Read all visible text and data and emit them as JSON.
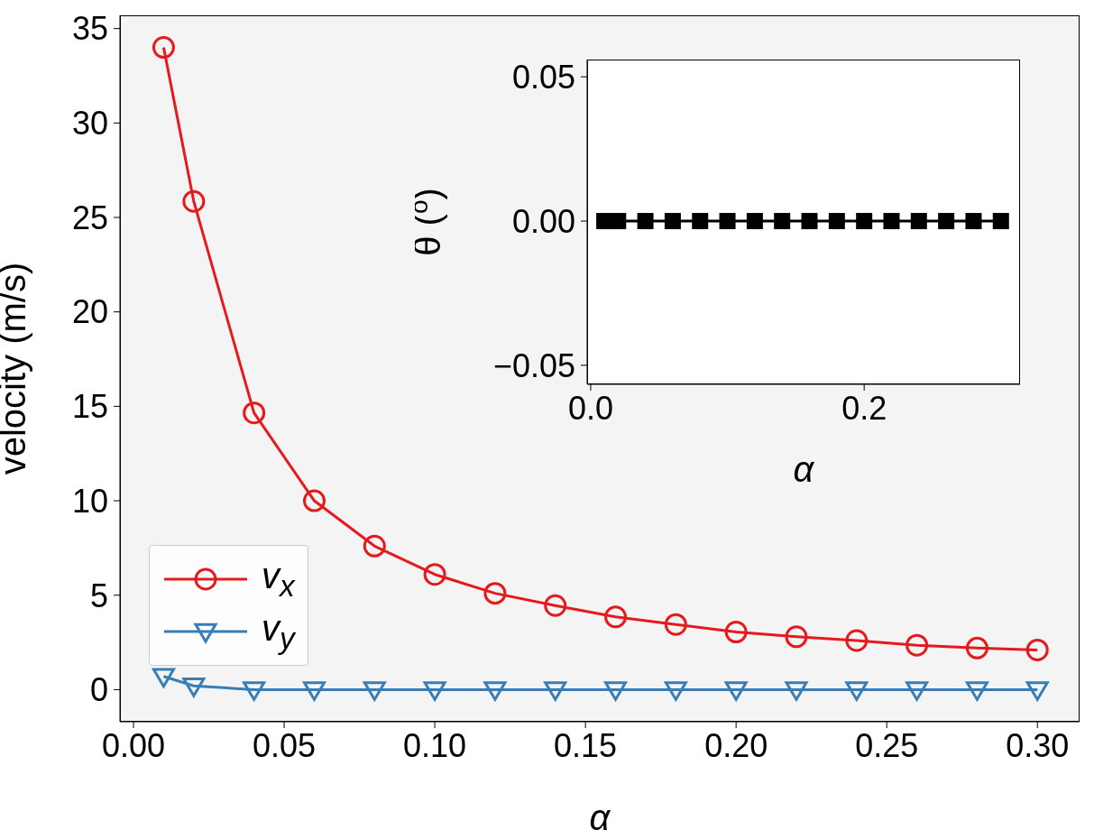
{
  "chart_data": [
    {
      "type": "line",
      "xlabel": "α",
      "ylabel": "velocity (m/s)",
      "x": [
        0.01,
        0.02,
        0.04,
        0.06,
        0.08,
        0.1,
        0.12,
        0.14,
        0.16,
        0.18,
        0.2,
        0.22,
        0.24,
        0.26,
        0.28,
        0.3
      ],
      "series": [
        {
          "name": "v$_{x}$",
          "color": "#e41a1c",
          "marker": "circle",
          "values": [
            34.0,
            25.85,
            14.65,
            10.0,
            7.6,
            6.1,
            5.1,
            4.45,
            3.85,
            3.45,
            3.05,
            2.8,
            2.6,
            2.35,
            2.2,
            2.1
          ]
        },
        {
          "name": "v$_{y}$",
          "color": "#377eb8",
          "marker": "triangle",
          "values": [
            0.7,
            0.2,
            0,
            0,
            0,
            0,
            0,
            0,
            0,
            0,
            0,
            0,
            0,
            0,
            0,
            0
          ]
        }
      ],
      "xlim": [
        -0.0045,
        0.314
      ],
      "xticks": [
        {
          "value": 0,
          "label": "0.00"
        },
        0.05,
        {
          "value": 0.1,
          "label": "0.10"
        },
        0.15,
        {
          "value": 0.2,
          "label": "0.20"
        },
        0.25,
        {
          "value": 0.3,
          "label": "0.30"
        }
      ],
      "ylim": [
        -1.7,
        35.7
      ],
      "yticks": [
        0,
        5,
        10,
        15,
        20,
        25,
        30,
        35
      ],
      "legend": "bottom left",
      "grid": false
    },
    {
      "type": "line",
      "xlabel": "α",
      "ylabel": "θ ($^{o}$)",
      "x": [
        0.01,
        0.02,
        0.04,
        0.06,
        0.08,
        0.1,
        0.12,
        0.14,
        0.16,
        0.18,
        0.2,
        0.22,
        0.24,
        0.26,
        0.28,
        0.3
      ],
      "series": [
        {
          "color": "#000000",
          "marker": "square",
          "values": [
            0,
            0,
            0,
            0,
            0,
            0,
            0,
            0,
            0,
            0,
            0,
            0,
            0,
            0,
            0,
            0
          ]
        }
      ],
      "xlim": [
        -0.0026,
        0.314
      ],
      "xticks": [
        {
          "value": 0,
          "label": "0.0"
        },
        0.2
      ],
      "ylim": [
        -0.0566,
        0.056
      ],
      "yticks": [
        {
          "value": -0.05,
          "label": "−0.05"
        },
        {
          "value": 0,
          "label": "0.00"
        },
        0.05
      ],
      "legend": false,
      "grid": false
    }
  ]
}
